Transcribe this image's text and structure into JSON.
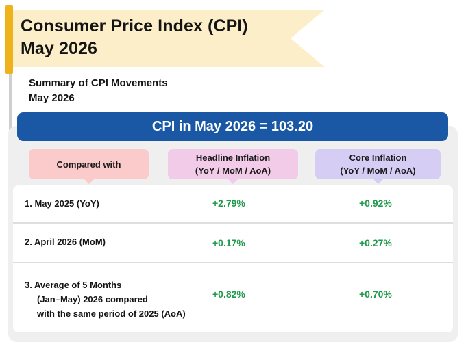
{
  "title": {
    "line1": "Consumer Price Index (CPI)",
    "line2": "May 2026"
  },
  "subtitle": {
    "line1": "Summary of CPI Movements",
    "line2": "May 2026"
  },
  "cpi_headline": "CPI in May 2026 = 103.20",
  "columns": {
    "compared_with": "Compared with",
    "headline": {
      "line1": "Headline Inflation",
      "line2": "(YoY / MoM / AoA)"
    },
    "core": {
      "line1": "Core Inflation",
      "line2": "(YoY / MoM / AoA)"
    }
  },
  "rows": [
    {
      "label": "1.  May 2025 (YoY)",
      "headline": "+2.79%",
      "core": "+0.92%"
    },
    {
      "label": "2.  April 2026 (MoM)",
      "headline": "+0.17%",
      "core": "+0.27%"
    },
    {
      "label_lines": [
        "3. Average of 5 Months",
        "(Jan–May) 2026 compared",
        "with the same period of 2025 (AoA)"
      ],
      "headline": "+0.82%",
      "core": "+0.70%"
    }
  ],
  "colors": {
    "accent_blue": "#1a58a6",
    "positive_green": "#1f9a4c",
    "banner_yellow": "#fbeec8",
    "pole_gold": "#f0b21a",
    "compare_pink": "#fbcaca",
    "headline_pink": "#f1cbe7",
    "core_lavender": "#d5cdf3"
  }
}
